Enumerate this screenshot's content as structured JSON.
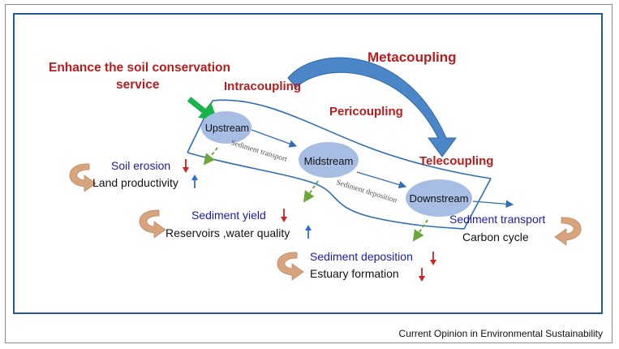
{
  "colors": {
    "heading_red": "#b81c1c",
    "blue_text": "#1a1aa6",
    "black_text": "#111111",
    "river_line": "#2e6db5",
    "node_fill": "#a7bde3",
    "green_arrow": "#19b24b",
    "dashed_arrow": "#6aa83a",
    "u_arrow": "#d8a47e",
    "meta_arrow": "#4a86c8",
    "down_arrow": "#cc2222",
    "up_arrow": "#2a6fd0"
  },
  "headings": {
    "enhance_line1": "Enhance the soil conservation",
    "enhance_line2": "service",
    "metacoupling": "Metacoupling",
    "intracoupling": "Intracoupling",
    "pericoupling": "Pericoupling",
    "telecoupling": "Telecoupling"
  },
  "nodes": {
    "upstream": "Upstream",
    "midstream": "Midstream",
    "downstream": "Downstream"
  },
  "flows": {
    "sediment_transport_small": "Sediment transport",
    "sediment_deposition_small": "Sediment deposition"
  },
  "effects": {
    "soil_erosion": "Soil erosion",
    "land_productivity": "Land productivity",
    "sediment_yield": "Sediment yield",
    "reservoirs": "Reservoirs ,water quality",
    "sediment_deposition": "Sediment deposition",
    "estuary_formation": "Estuary formation",
    "sediment_transport": "Sediment transport",
    "carbon_cycle": "Carbon cycle"
  },
  "icons": {
    "down": "down-arrow-icon",
    "up": "up-arrow-icon",
    "cycle": "curved-return-arrow-icon"
  },
  "footer": "Current Opinion in Environmental Sustainability"
}
